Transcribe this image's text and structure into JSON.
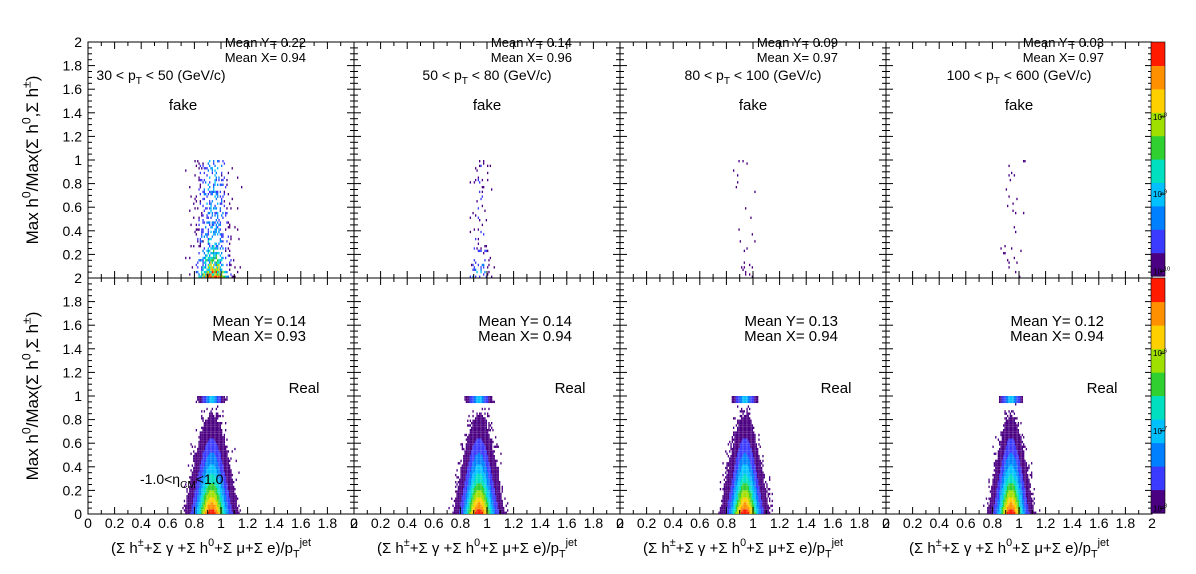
{
  "chart_data": {
    "type": "heatmap",
    "ylabel": "Max h^{0}/Max(Σ h^{0},Σ h^{±})",
    "xlabel": "(Σ h^{±}+Σ γ +Σ h^{0}+Σ μ+Σ e)/p_{T}^{jet}",
    "x_ticks": [
      "0",
      "0.2",
      "0.4",
      "0.6",
      "0.8",
      "1",
      "1.2",
      "1.4",
      "1.6",
      "1.8",
      "2"
    ],
    "y_ticks": [
      "0.2",
      "0.4",
      "0.6",
      "0.8",
      "1",
      "1.2",
      "1.4",
      "1.6",
      "1.8",
      "2"
    ],
    "xlim": [
      0,
      2
    ],
    "ylim": [
      0,
      2
    ],
    "z_scale": "log",
    "colorbar_top_ticks": [
      "10^{-8}",
      "10^{-9}",
      "10^{-10}"
    ],
    "colorbar_bottom_ticks": [
      "10^{-6}",
      "10^{-7}",
      "10^{-8}"
    ],
    "eta_label": "-1.0<η_{CM}<1.0",
    "rows": [
      {
        "label": "fake",
        "panels": [
          {
            "pt": "30 < p_{T} < 50 (GeV/c)",
            "mean_y": "Mean Y= 0.22",
            "mean_x": "Mean X= 0.94",
            "xc": 0.94,
            "spread": 0.07,
            "density": 1.0
          },
          {
            "pt": "50 < p_{T} < 80 (GeV/c)",
            "mean_y": "Mean Y= 0.14",
            "mean_x": "Mean X= 0.96",
            "xc": 0.95,
            "spread": 0.035,
            "density": 0.35
          },
          {
            "pt": "80 < p_{T} < 100 (GeV/c)",
            "mean_y": "Mean Y= 0.09",
            "mean_x": "Mean X= 0.97",
            "xc": 0.95,
            "spread": 0.04,
            "density": 0.08
          },
          {
            "pt": "100 < p_{T} < 600 (GeV/c)",
            "mean_y": "Mean Y= 0.03",
            "mean_x": "Mean X= 0.97",
            "xc": 0.95,
            "spread": 0.04,
            "density": 0.12
          }
        ]
      },
      {
        "label": "Real",
        "panels": [
          {
            "mean_y": "Mean Y= 0.14",
            "mean_x": "Mean X= 0.93",
            "xc": 0.93,
            "spread": 0.055,
            "density": 1.0
          },
          {
            "mean_y": "Mean Y= 0.14",
            "mean_x": "Mean X= 0.94",
            "xc": 0.94,
            "spread": 0.05,
            "density": 1.0
          },
          {
            "mean_y": "Mean Y= 0.13",
            "mean_x": "Mean X= 0.94",
            "xc": 0.94,
            "spread": 0.045,
            "density": 1.0
          },
          {
            "mean_y": "Mean Y= 0.12",
            "mean_x": "Mean X= 0.94",
            "xc": 0.94,
            "spread": 0.04,
            "density": 1.0
          }
        ]
      }
    ]
  }
}
